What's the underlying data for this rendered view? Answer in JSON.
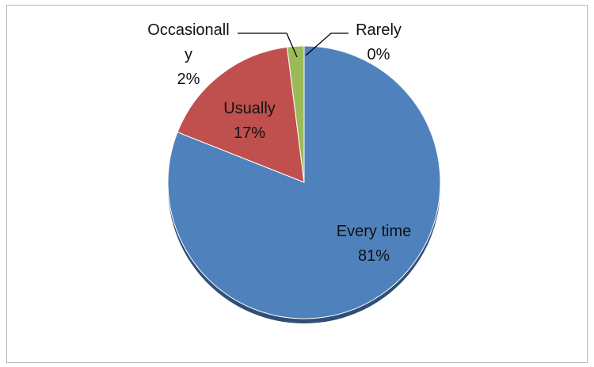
{
  "chart_data": {
    "type": "pie",
    "title": "",
    "slices": [
      {
        "label": "Every time",
        "line2": "",
        "value_label": "81%",
        "value": 81,
        "color": "#4F81BD"
      },
      {
        "label": "Usually",
        "line2": "",
        "value_label": "17%",
        "value": 17,
        "color": "#C0504D"
      },
      {
        "label": "Occasionall",
        "line2": "y",
        "value_label": "2%",
        "value": 2,
        "color": "#9BBB59"
      },
      {
        "label": "Rarely",
        "line2": "",
        "value_label": "0%",
        "value": 0,
        "color": "#8064A2"
      }
    ],
    "legend": "none",
    "start_angle_deg": 0,
    "direction": "clockwise"
  }
}
